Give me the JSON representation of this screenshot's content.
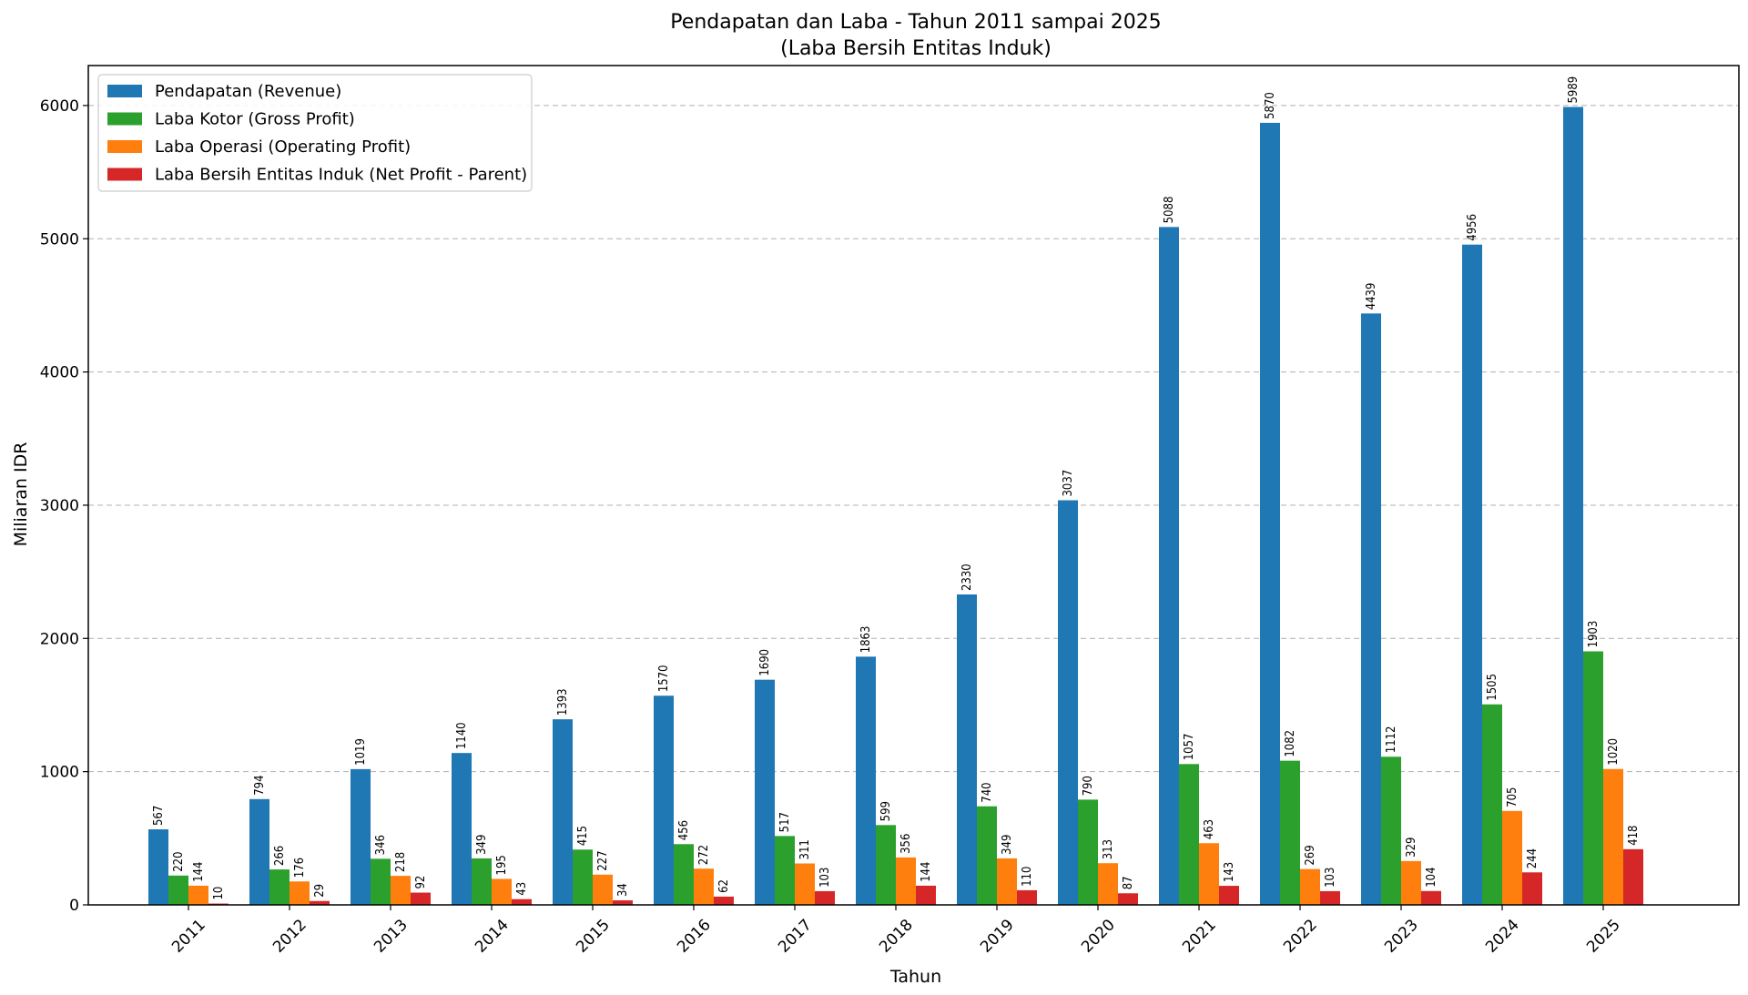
{
  "chart_data": {
    "type": "bar",
    "title": "Pendapatan dan Laba - Tahun 2011 sampai 2025",
    "subtitle": "(Laba Bersih Entitas Induk)",
    "xlabel": "Tahun",
    "ylabel": "Miliaran IDR",
    "ylim": [
      0,
      6300
    ],
    "yticks": [
      0,
      1000,
      2000,
      3000,
      4000,
      5000,
      6000
    ],
    "grid": "y",
    "legend_position": "top-left",
    "categories": [
      "2011",
      "2012",
      "2013",
      "2014",
      "2015",
      "2016",
      "2017",
      "2018",
      "2019",
      "2020",
      "2021",
      "2022",
      "2023",
      "2024",
      "2025"
    ],
    "series": [
      {
        "name": "Pendapatan (Revenue)",
        "color": "#1f77b4",
        "values": [
          567,
          794,
          1019,
          1140,
          1393,
          1570,
          1690,
          1863,
          2330,
          3037,
          5088,
          5870,
          4439,
          4956,
          5989
        ]
      },
      {
        "name": "Laba Kotor (Gross Profit)",
        "color": "#2ca02c",
        "values": [
          220,
          266,
          346,
          349,
          415,
          456,
          517,
          599,
          740,
          790,
          1057,
          1082,
          1112,
          1505,
          1903
        ]
      },
      {
        "name": "Laba Operasi (Operating Profit)",
        "color": "#ff7f0e",
        "values": [
          144,
          176,
          218,
          195,
          227,
          272,
          311,
          356,
          349,
          313,
          463,
          269,
          329,
          705,
          1020
        ]
      },
      {
        "name": "Laba Bersih Entitas Induk (Net Profit - Parent)",
        "color": "#d62728",
        "values": [
          10,
          29,
          92,
          43,
          34,
          62,
          103,
          144,
          110,
          87,
          143,
          103,
          104,
          244,
          418
        ]
      }
    ]
  }
}
